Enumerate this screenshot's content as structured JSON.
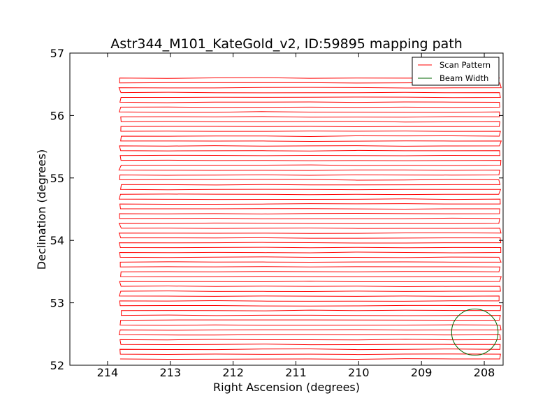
{
  "chart_data": {
    "type": "line",
    "title": "Astr344_M101_KateGold_v2, ID:59895 mapping path",
    "xlabel": "Right Ascension (degrees)",
    "ylabel": "Declination (degrees)",
    "xlim": [
      214.6,
      207.7
    ],
    "ylim": [
      52,
      57
    ],
    "x_inverted": true,
    "x_ticks": [
      "214",
      "213",
      "212",
      "211",
      "210",
      "209",
      "208"
    ],
    "y_ticks": [
      "52",
      "53",
      "54",
      "55",
      "56",
      "57"
    ],
    "grid": false,
    "legend_position": "top-right",
    "series": [
      {
        "name": "Scan Pattern",
        "color": "#ff0000",
        "pattern": "boustrophedon raster",
        "ra_range": [
          213.8,
          207.75
        ],
        "dec_first_row": 52.1,
        "dec_last_row": 56.6,
        "rows": 59
      },
      {
        "name": "Beam Width",
        "color": "#006400",
        "shape": "circle",
        "center": [
          208.15,
          52.53
        ],
        "radius_deg": 0.37
      }
    ]
  }
}
